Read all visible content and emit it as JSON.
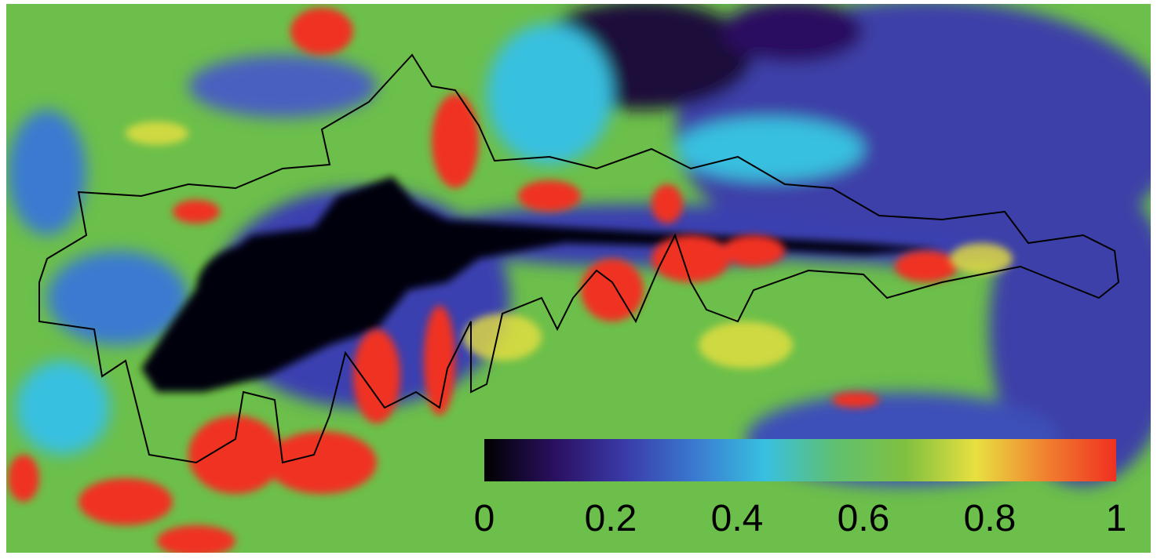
{
  "colorbar": {
    "lim": [
      0,
      1
    ],
    "ticks": [
      0,
      0.2,
      0.4,
      0.6,
      0.8,
      1
    ],
    "colors": [
      "#000000",
      "#2a1060",
      "#3a3aa8",
      "#3a7ad0",
      "#38c0e0",
      "#60c070",
      "#80c040",
      "#e8e040",
      "#f08030",
      "#f03020"
    ]
  }
}
